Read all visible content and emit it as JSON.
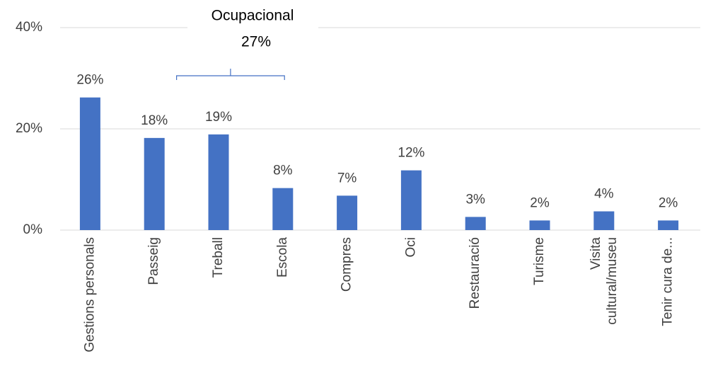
{
  "chart_data": {
    "type": "bar",
    "categories": [
      "Gestions personals",
      "Passeig",
      "Treball",
      "Escola",
      "Compres",
      "Oci",
      "Restauració",
      "Turisme",
      "Visita\ncultural/museu",
      "Tenir cura de..."
    ],
    "values": [
      26.2,
      18.2,
      18.9,
      8.3,
      6.8,
      11.8,
      2.6,
      1.9,
      3.7,
      1.9
    ],
    "value_labels": [
      "26%",
      "18%",
      "19%",
      "8%",
      "7%",
      "12%",
      "3%",
      "2%",
      "4%",
      "2%"
    ],
    "color": "#4472c4",
    "ylim": [
      0,
      40
    ],
    "yticks": [
      {
        "value": 0,
        "label": "0%"
      },
      {
        "value": 20,
        "label": "20%"
      },
      {
        "value": 40,
        "label": "40%"
      }
    ],
    "grid": true,
    "annotation": {
      "label": "Ocupacional",
      "value": 27,
      "value_label": "27%"
    }
  }
}
